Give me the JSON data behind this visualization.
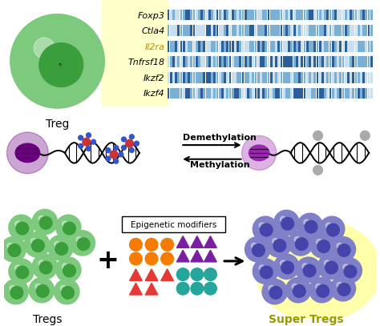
{
  "bg_color": "#ffffff",
  "genes": [
    "Foxp3",
    "Ctla4",
    "Il2ra",
    "Tnfrsf18",
    "Ikzf2",
    "Ikzf4"
  ],
  "treg_label": "Treg",
  "tregs_label": "Tregs",
  "super_tregs_label": "Super Tregs",
  "demethylation_label": "Demethylation",
  "methylation_label": "Methylation",
  "epigenetic_label": "Epigenetic modifiers",
  "cell_green_outer": "#7dc97d",
  "cell_green_inner": "#3a9e3a",
  "cell_blue_outer": "#8080c8",
  "cell_blue_inner": "#4444aa",
  "heatmap_dark": "#2c5f9a",
  "heatmap_mid": "#7ab0d4",
  "heatmap_light": "#c8dff0",
  "yellow_bg": "#ffffcc",
  "yellow_glow": "#ffffaa",
  "purple_dark": "#6a0080",
  "purple_light": "#9c27b0",
  "orange_color": "#f57c00",
  "red_color": "#e53935",
  "teal_color": "#26a69a",
  "purple_tri": "#7b1fa2",
  "grey_dot": "#aaaaaa",
  "red_methyl": "#cc3333",
  "blue_methyl": "#3355cc"
}
